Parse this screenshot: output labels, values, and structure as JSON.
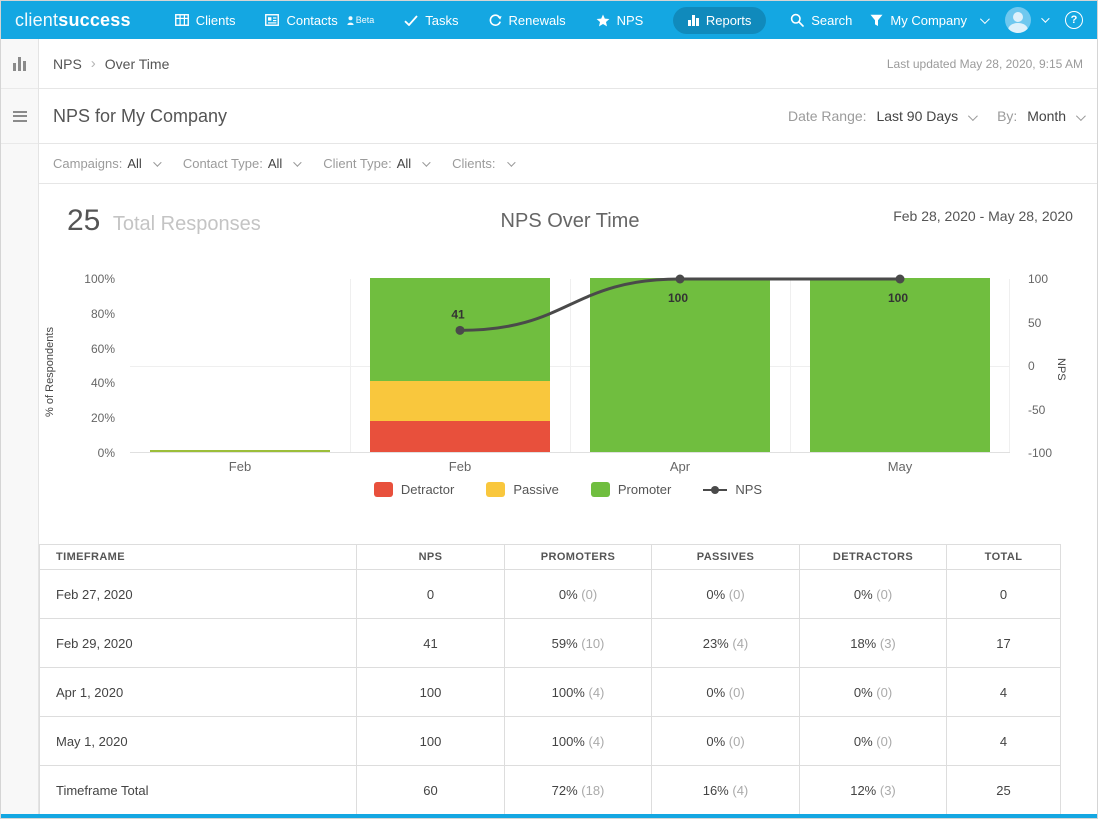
{
  "nav": {
    "logo_light": "client",
    "logo_bold": "success",
    "items": [
      {
        "label": "Clients",
        "icon": "grid-icon"
      },
      {
        "label": "Contacts",
        "icon": "contact-card-icon",
        "badge": "Beta"
      },
      {
        "label": "Tasks",
        "icon": "check-icon"
      },
      {
        "label": "Renewals",
        "icon": "refresh-icon"
      },
      {
        "label": "NPS",
        "icon": "star-icon"
      },
      {
        "label": "Reports",
        "icon": "bar-chart-icon",
        "active": true
      }
    ],
    "search_label": "Search",
    "company_label": "My Company"
  },
  "breadcrumb": {
    "parent": "NPS",
    "separator": "›",
    "current": "Over Time",
    "last_updated": "Last updated May 28, 2020, 9:15 AM"
  },
  "header": {
    "title": "NPS for My Company",
    "date_range_label": "Date Range:",
    "date_range_value": "Last 90 Days",
    "by_label": "By:",
    "by_value": "Month"
  },
  "filters": [
    {
      "label": "Campaigns:",
      "value": "All"
    },
    {
      "label": "Contact Type:",
      "value": "All"
    },
    {
      "label": "Client Type:",
      "value": "All"
    },
    {
      "label": "Clients:",
      "value": ""
    }
  ],
  "summary": {
    "total_responses_value": "25",
    "total_responses_label": "Total Responses",
    "chart_title": "NPS Over Time",
    "date_span": "Feb 28, 2020 - May 28, 2020"
  },
  "chart_data": {
    "type": "stacked-bar+line",
    "title": "NPS Over Time",
    "categories": [
      "Feb",
      "Feb",
      "Apr",
      "May"
    ],
    "series": [
      {
        "name": "Detractor",
        "color": "#e8503c",
        "values": [
          0,
          18,
          0,
          0
        ]
      },
      {
        "name": "Passive",
        "color": "#f9c73d",
        "values": [
          0,
          23,
          0,
          0
        ]
      },
      {
        "name": "Promoter",
        "color": "#70be3f",
        "values": [
          0,
          59,
          100,
          100
        ]
      }
    ],
    "line": {
      "name": "NPS",
      "color": "#4a4a4a",
      "values": [
        null,
        41,
        100,
        100
      ],
      "labels": [
        "",
        "41",
        "100",
        "100"
      ],
      "label_pos": [
        "",
        "above",
        "below",
        "below"
      ]
    },
    "zero_bar_color": "#9cbe3a",
    "y_left": {
      "label": "% of Respondents",
      "ticks": [
        "100%",
        "80%",
        "60%",
        "40%",
        "20%",
        "0%"
      ],
      "min": 0,
      "max": 100
    },
    "y_right": {
      "label": "NPS",
      "ticks": [
        "100",
        "50",
        "0",
        "-50",
        "-100"
      ],
      "min": -100,
      "max": 100
    },
    "legend": [
      {
        "label": "Detractor",
        "color": "#e8503c",
        "type": "swatch"
      },
      {
        "label": "Passive",
        "color": "#f9c73d",
        "type": "swatch"
      },
      {
        "label": "Promoter",
        "color": "#70be3f",
        "type": "swatch"
      },
      {
        "label": "NPS",
        "color": "#4a4a4a",
        "type": "line"
      }
    ]
  },
  "table": {
    "columns": [
      "TIMEFRAME",
      "NPS",
      "PROMOTERS",
      "PASSIVES",
      "DETRACTORS",
      "TOTAL"
    ],
    "rows": [
      {
        "timeframe": "Feb 27, 2020",
        "nps": "0",
        "promoters": "0%",
        "promoters_count": "(0)",
        "passives": "0%",
        "passives_count": "(0)",
        "detractors": "0%",
        "detractors_count": "(0)",
        "total": "0"
      },
      {
        "timeframe": "Feb 29, 2020",
        "nps": "41",
        "promoters": "59%",
        "promoters_count": "(10)",
        "passives": "23%",
        "passives_count": "(4)",
        "detractors": "18%",
        "detractors_count": "(3)",
        "total": "17"
      },
      {
        "timeframe": "Apr 1, 2020",
        "nps": "100",
        "promoters": "100%",
        "promoters_count": "(4)",
        "passives": "0%",
        "passives_count": "(0)",
        "detractors": "0%",
        "detractors_count": "(0)",
        "total": "4"
      },
      {
        "timeframe": "May 1, 2020",
        "nps": "100",
        "promoters": "100%",
        "promoters_count": "(4)",
        "passives": "0%",
        "passives_count": "(0)",
        "detractors": "0%",
        "detractors_count": "(0)",
        "total": "4"
      },
      {
        "timeframe": "Timeframe Total",
        "nps": "60",
        "promoters": "72%",
        "promoters_count": "(18)",
        "passives": "16%",
        "passives_count": "(4)",
        "detractors": "12%",
        "detractors_count": "(3)",
        "total": "25"
      }
    ]
  }
}
